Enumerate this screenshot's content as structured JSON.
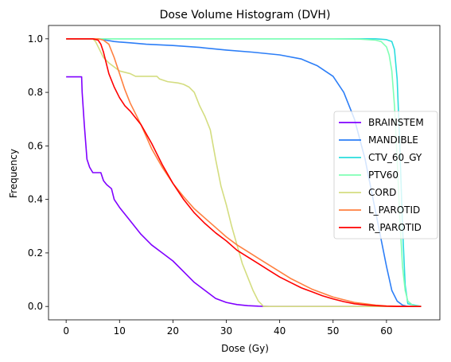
{
  "chart_data": {
    "type": "line",
    "title": "Dose Volume Histogram (DVH)",
    "xlabel": "Dose (Gy)",
    "ylabel": "Frequency",
    "xlim": [
      -3.3,
      70
    ],
    "ylim": [
      -0.05,
      1.05
    ],
    "xticks": [
      0,
      10,
      20,
      30,
      40,
      50,
      60
    ],
    "yticks": [
      0.0,
      0.2,
      0.4,
      0.6,
      0.8,
      1.0
    ],
    "xtick_labels": [
      "0",
      "10",
      "20",
      "30",
      "40",
      "50",
      "60"
    ],
    "ytick_labels": [
      "0.0",
      "0.2",
      "0.4",
      "0.6",
      "0.8",
      "1.0"
    ],
    "grid": false,
    "legend": "center-right",
    "series": [
      {
        "name": "BRAINSTEM",
        "color": "#8000ff",
        "x": [
          0,
          2.9,
          3.0,
          3.4,
          3.9,
          4.4,
          5.0,
          6.5,
          7.0,
          7.6,
          8.5,
          9.0,
          10,
          12,
          14,
          16,
          18,
          20,
          22,
          24,
          26,
          28,
          30,
          32,
          34,
          36,
          38,
          40,
          66.5
        ],
        "y": [
          0.858,
          0.858,
          0.8,
          0.68,
          0.55,
          0.52,
          0.5,
          0.5,
          0.47,
          0.455,
          0.44,
          0.4,
          0.37,
          0.32,
          0.27,
          0.23,
          0.2,
          0.17,
          0.13,
          0.09,
          0.06,
          0.03,
          0.015,
          0.007,
          0.003,
          0.001,
          0,
          0,
          0
        ]
      },
      {
        "name": "MANDIBLE",
        "color": "#2c7ef7",
        "x": [
          0,
          5.5,
          6.5,
          7.0,
          7.5,
          9,
          10,
          12,
          15,
          20,
          25,
          30,
          35,
          40,
          44,
          47,
          50,
          52,
          54,
          56,
          58,
          60,
          61,
          62,
          63,
          64,
          66.5
        ],
        "y": [
          1.0,
          1.0,
          1.0,
          0.998,
          0.995,
          0.99,
          0.988,
          0.985,
          0.98,
          0.975,
          0.968,
          0.958,
          0.95,
          0.94,
          0.925,
          0.9,
          0.86,
          0.8,
          0.7,
          0.55,
          0.35,
          0.15,
          0.06,
          0.02,
          0.005,
          0,
          0
        ]
      },
      {
        "name": "CTV_60_GY",
        "color": "#2adddd",
        "x": [
          0,
          58,
          60,
          61,
          61.5,
          62,
          62.5,
          63,
          63.5,
          64,
          66.5
        ],
        "y": [
          1.0,
          1.0,
          0.997,
          0.99,
          0.96,
          0.85,
          0.6,
          0.3,
          0.08,
          0.01,
          0
        ]
      },
      {
        "name": "PTV60",
        "color": "#80ffb4",
        "x": [
          0,
          50,
          55,
          58,
          59,
          60,
          60.5,
          61,
          61.5,
          62,
          62.5,
          63,
          63.5,
          64,
          65,
          66.5
        ],
        "y": [
          1.0,
          1.0,
          0.999,
          0.995,
          0.99,
          0.97,
          0.94,
          0.88,
          0.75,
          0.55,
          0.33,
          0.15,
          0.06,
          0.02,
          0.003,
          0
        ]
      },
      {
        "name": "CORD",
        "color": "#d4dd80",
        "x": [
          0,
          5.0,
          5.5,
          6.0,
          6.5,
          7,
          8,
          10,
          12,
          13,
          15,
          17,
          17.5,
          19,
          21,
          22,
          23,
          24,
          25,
          26,
          27,
          28,
          29,
          30,
          31,
          32,
          33,
          34,
          35,
          36,
          37,
          66.5
        ],
        "y": [
          1.0,
          1.0,
          0.99,
          0.97,
          0.95,
          0.93,
          0.91,
          0.88,
          0.87,
          0.86,
          0.86,
          0.86,
          0.85,
          0.84,
          0.835,
          0.83,
          0.82,
          0.8,
          0.75,
          0.71,
          0.66,
          0.55,
          0.45,
          0.38,
          0.3,
          0.23,
          0.16,
          0.11,
          0.06,
          0.02,
          0,
          0
        ]
      },
      {
        "name": "L_PAROTID",
        "color": "#ff8040",
        "x": [
          0,
          5,
          6,
          7,
          8,
          9,
          10,
          11,
          12,
          14,
          16,
          18,
          20,
          22,
          24,
          26,
          28,
          30,
          32,
          34,
          36,
          38,
          40,
          42,
          44,
          46,
          48,
          50,
          52,
          54,
          56,
          58,
          60,
          62,
          64,
          66.5
        ],
        "y": [
          1.0,
          1.0,
          1.0,
          0.995,
          0.98,
          0.93,
          0.87,
          0.81,
          0.76,
          0.68,
          0.59,
          0.52,
          0.46,
          0.41,
          0.365,
          0.33,
          0.295,
          0.26,
          0.23,
          0.205,
          0.18,
          0.155,
          0.13,
          0.105,
          0.085,
          0.065,
          0.05,
          0.035,
          0.025,
          0.015,
          0.01,
          0.005,
          0.002,
          0.001,
          0,
          0
        ]
      },
      {
        "name": "R_PAROTID",
        "color": "#ff0000",
        "x": [
          0,
          5,
          6,
          6.5,
          7,
          7.5,
          8,
          9,
          10,
          11,
          12,
          14,
          16,
          18,
          20,
          22,
          24,
          26,
          28,
          30,
          32,
          34,
          36,
          38,
          40,
          42,
          44,
          46,
          48,
          50,
          52,
          54,
          56,
          58,
          60,
          62,
          66.5
        ],
        "y": [
          1.0,
          1.0,
          0.995,
          0.98,
          0.95,
          0.91,
          0.87,
          0.82,
          0.78,
          0.75,
          0.73,
          0.68,
          0.61,
          0.53,
          0.46,
          0.4,
          0.35,
          0.31,
          0.275,
          0.245,
          0.21,
          0.185,
          0.16,
          0.135,
          0.11,
          0.09,
          0.07,
          0.055,
          0.04,
          0.028,
          0.018,
          0.01,
          0.006,
          0.003,
          0.001,
          0,
          0
        ]
      }
    ]
  }
}
